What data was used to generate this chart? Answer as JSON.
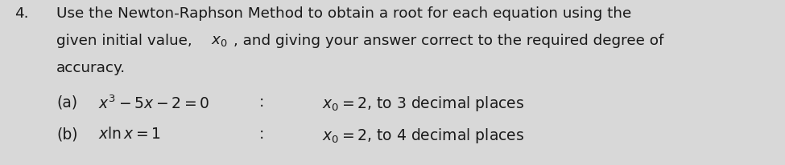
{
  "bg_color": "#d8d8d8",
  "text_color": "#1a1a1a",
  "number": "4.",
  "line1": "Use the Newton-Raphson Method to obtain a root for each equation using the",
  "line2_pre": "given initial value, ",
  "line2_x0": "$x_0$",
  "line2_post": ", and giving your answer correct to the required degree of",
  "line3": "accuracy.",
  "part_a_label": "(a)",
  "part_a_eq": "$x^3 - 5x - 2 = 0$",
  "part_a_colon": ":",
  "part_a_rhs": "$x_0 = 2$, to 3 decimal places",
  "part_b_label": "(b)",
  "part_b_eq": "$x \\ln x = 1$",
  "part_b_colon": ":",
  "part_b_rhs": "$x_0 = 2$, to 4 decimal places",
  "fs_main": 13.2,
  "fs_parts": 13.5,
  "fig_w": 9.75,
  "fig_h": 2.07,
  "dpi": 100
}
